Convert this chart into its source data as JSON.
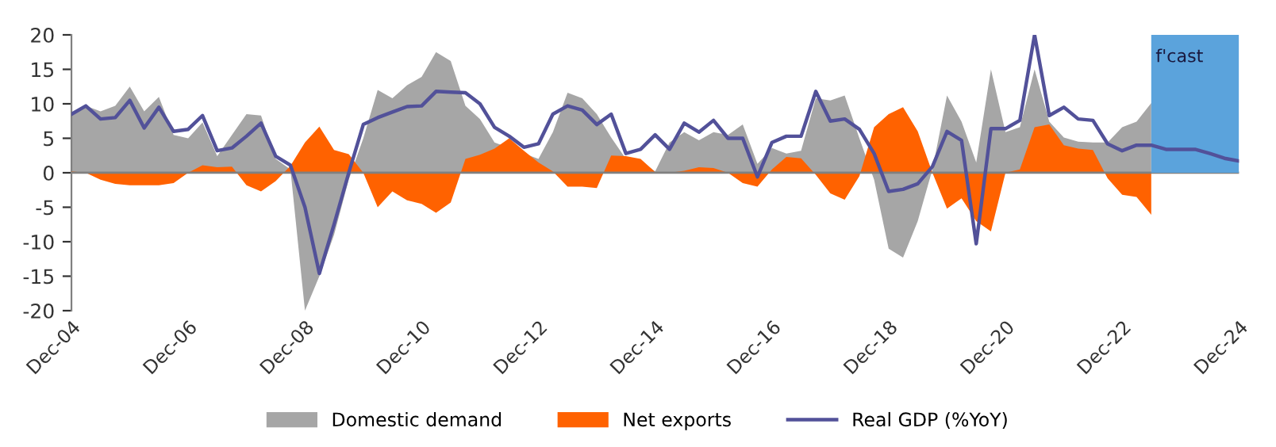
{
  "chart_data": {
    "type": "area",
    "x": [
      "2004-12",
      "2005-03",
      "2005-06",
      "2005-09",
      "2005-12",
      "2006-03",
      "2006-06",
      "2006-09",
      "2006-12",
      "2007-03",
      "2007-06",
      "2007-09",
      "2007-12",
      "2008-03",
      "2008-06",
      "2008-09",
      "2008-12",
      "2009-03",
      "2009-06",
      "2009-09",
      "2009-12",
      "2010-03",
      "2010-06",
      "2010-09",
      "2010-12",
      "2011-03",
      "2011-06",
      "2011-09",
      "2011-12",
      "2012-03",
      "2012-06",
      "2012-09",
      "2012-12",
      "2013-03",
      "2013-06",
      "2013-09",
      "2013-12",
      "2014-03",
      "2014-06",
      "2014-09",
      "2014-12",
      "2015-03",
      "2015-06",
      "2015-09",
      "2015-12",
      "2016-03",
      "2016-06",
      "2016-09",
      "2016-12",
      "2017-03",
      "2017-06",
      "2017-09",
      "2017-12",
      "2018-03",
      "2018-06",
      "2018-09",
      "2018-12",
      "2019-03",
      "2019-06",
      "2019-09",
      "2019-12",
      "2020-03",
      "2020-06",
      "2020-09",
      "2020-12",
      "2021-03",
      "2021-06",
      "2021-09",
      "2021-12",
      "2022-03",
      "2022-06",
      "2022-09",
      "2022-12",
      "2023-03",
      "2023-06",
      "2023-09",
      "2023-12",
      "2024-03",
      "2024-06",
      "2024-09",
      "2024-12"
    ],
    "series": [
      {
        "name": "Domestic demand",
        "color": "#a6a6a6",
        "values": [
          8.7,
          9.7,
          8.9,
          9.7,
          12.5,
          8.9,
          11,
          5.5,
          5.0,
          7.3,
          2.4,
          5.5,
          8.5,
          8.3,
          2,
          0.5,
          -20,
          -15,
          -9,
          -1,
          5,
          12,
          10.8,
          12.7,
          13.9,
          17.5,
          16.2,
          9.7,
          7.8,
          4.4,
          null,
          null,
          2.0,
          5.9,
          11.6,
          10.8,
          8.5,
          5.1,
          2.0,
          1.7,
          0.2,
          4.4,
          5.9,
          4.7,
          5.9,
          5.5,
          7.0,
          1.3,
          3.6,
          2.8,
          3.2,
          10.8,
          10.5,
          11.2,
          5,
          -1,
          -11,
          -12.3,
          -7,
          0.5,
          11.2,
          7.4,
          1.5,
          15,
          5.9,
          6.6,
          15,
          7.4,
          5.1,
          4.5,
          4.4,
          4.4,
          6.6,
          7.4,
          10.1,
          null,
          null,
          null,
          null,
          null,
          null
        ]
      },
      {
        "name": "Net exports",
        "color": "#ff6200",
        "values": [
          0.2,
          0,
          -1,
          -1.6,
          -1.8,
          -1.8,
          -1.8,
          -1.5,
          0,
          1.1,
          0.8,
          0.9,
          -1.8,
          -2.7,
          -1.2,
          1,
          4.4,
          6.7,
          3.3,
          2.7,
          0,
          -5,
          -2.7,
          -4,
          -4.5,
          -5.8,
          -4.3,
          2,
          2.6,
          3.5,
          5,
          3.2,
          1.5,
          0.2,
          -2,
          -2,
          -2.2,
          2.5,
          2.4,
          2,
          0.1,
          0,
          0.3,
          0.8,
          0.7,
          0,
          -1.5,
          -2,
          0.5,
          2.3,
          2.1,
          -0.3,
          -3,
          -3.9,
          -0.5,
          6.6,
          8.5,
          9.5,
          6,
          0,
          -5.2,
          -3.7,
          -7,
          -8.5,
          0,
          0.5,
          6.6,
          7,
          4,
          3.5,
          3.3,
          -0.8,
          -3.2,
          -3.5,
          -6.1,
          null,
          null,
          null,
          null,
          null,
          null
        ]
      },
      {
        "name": "Real GDP (%YoY)",
        "type": "line",
        "color": "#525199",
        "values": [
          8.5,
          9.7,
          7.8,
          8.0,
          10.5,
          6.5,
          9.5,
          6.0,
          6.3,
          8.3,
          3.2,
          3.6,
          5.3,
          7.2,
          2.4,
          1.1,
          -5,
          -14.6,
          -7.5,
          0,
          7.0,
          8.0,
          8.8,
          9.6,
          9.7,
          11.8,
          11.7,
          11.6,
          10,
          6.6,
          5.3,
          3.7,
          4.2,
          8.5,
          9.7,
          9.1,
          7.0,
          8.5,
          2.8,
          3.4,
          5.5,
          3.4,
          7.2,
          5.9,
          7.6,
          5.0,
          5.0,
          -0.6,
          4.4,
          5.3,
          5.3,
          11.8,
          7.5,
          7.8,
          6.3,
          2.8,
          -2.7,
          -2.4,
          -1.6,
          0.9,
          6.0,
          4.7,
          -10.3,
          6.4,
          6.4,
          7.6,
          20,
          8.3,
          9.5,
          7.8,
          7.6,
          4.2,
          3.2,
          4.0,
          4.0,
          3.4,
          3.4,
          3.4,
          2.8,
          2.1,
          1.7
        ]
      }
    ],
    "xlim": [
      "2004-12",
      "2024-12"
    ],
    "xticks": [
      {
        "value": "2004-12",
        "label": "Dec-04"
      },
      {
        "value": "2006-12",
        "label": "Dec-06"
      },
      {
        "value": "2008-12",
        "label": "Dec-08"
      },
      {
        "value": "2010-12",
        "label": "Dec-10"
      },
      {
        "value": "2012-12",
        "label": "Dec-12"
      },
      {
        "value": "2014-12",
        "label": "Dec-14"
      },
      {
        "value": "2016-12",
        "label": "Dec-16"
      },
      {
        "value": "2018-12",
        "label": "Dec-18"
      },
      {
        "value": "2020-12",
        "label": "Dec-20"
      },
      {
        "value": "2022-12",
        "label": "Dec-22"
      },
      {
        "value": "2024-12",
        "label": "Dec-24"
      }
    ],
    "ylim": [
      -20,
      20
    ],
    "yticks": [
      -20,
      -15,
      -10,
      -5,
      0,
      5,
      10,
      15,
      20
    ],
    "ref_lines": [
      {
        "axis": "y",
        "value": 0,
        "color": "#808080"
      }
    ],
    "bands": [
      {
        "axis": "x",
        "from": "2023-06",
        "to": "2024-12",
        "label": "f'cast",
        "color": "#5ba3dc"
      }
    ],
    "grid": false,
    "legend": "bottom",
    "marker": "none",
    "line_style": "solid"
  }
}
